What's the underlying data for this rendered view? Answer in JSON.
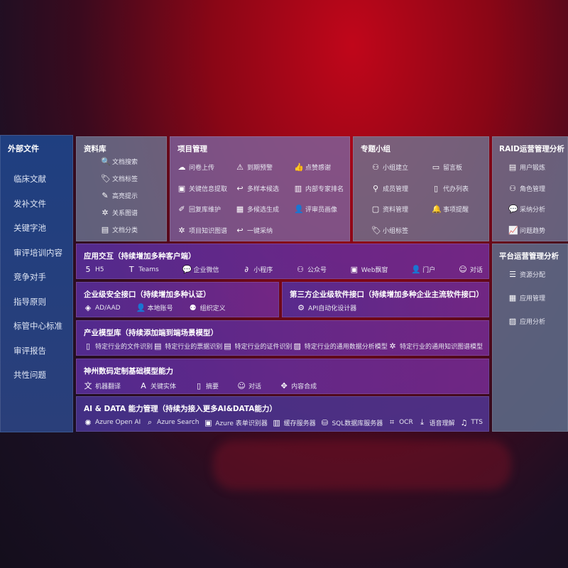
{
  "sidebar": {
    "title": "外部文件",
    "items": [
      "临床文献",
      "发补文件",
      "关键字池",
      "审评培训内容",
      "竞争对手",
      "指导原则",
      "标管中心标准",
      "审评报告",
      "共性问题"
    ]
  },
  "library": {
    "title": "资料库",
    "items": [
      {
        "icon": "doc-search-icon",
        "label": "文档搜索"
      },
      {
        "icon": "tag-icon",
        "label": "文档标签"
      },
      {
        "icon": "pen-icon",
        "label": "高亮提示"
      },
      {
        "icon": "graph-icon",
        "label": "关系图谱"
      },
      {
        "icon": "doc-category-icon",
        "label": "文档分类"
      }
    ]
  },
  "project": {
    "title": "项目管理",
    "items": [
      {
        "icon": "cloud-upload-icon",
        "label": "问卷上传"
      },
      {
        "icon": "alarm-icon",
        "label": "到期预警"
      },
      {
        "icon": "thumbs-up-icon",
        "label": "点赞感谢"
      },
      {
        "icon": "window-icon",
        "label": "关键信息提取"
      },
      {
        "icon": "reply-icon",
        "label": "多样本候选"
      },
      {
        "icon": "ranking-icon",
        "label": "内部专家排名"
      },
      {
        "icon": "edit-icon",
        "label": "回复库维护"
      },
      {
        "icon": "puzzle-icon",
        "label": "多候选生成"
      },
      {
        "icon": "user-icon",
        "label": "评审员画像"
      },
      {
        "icon": "graph-icon",
        "label": "项目知识图谱"
      },
      {
        "icon": "reply-icon",
        "label": "一键采纳"
      }
    ]
  },
  "group": {
    "title": "专题小组",
    "items": [
      {
        "icon": "users-icon",
        "label": "小组建立"
      },
      {
        "icon": "bbs-icon",
        "label": "留言板"
      },
      {
        "icon": "user-add-icon",
        "label": "成员管理"
      },
      {
        "icon": "clipboard-icon",
        "label": "代办列表"
      },
      {
        "icon": "folder-icon",
        "label": "资料管理"
      },
      {
        "icon": "bell-icon",
        "label": "事项提醒"
      },
      {
        "icon": "tag-icon",
        "label": "小组标签"
      }
    ]
  },
  "raid": {
    "title": "RAID运营管理分析",
    "items": [
      {
        "icon": "id-card-icon",
        "label": "用户锻炼"
      },
      {
        "icon": "users-icon",
        "label": "角色管理"
      },
      {
        "icon": "qa-icon",
        "label": "采纳分析"
      },
      {
        "icon": "trend-icon",
        "label": "问题趋势"
      }
    ]
  },
  "platform": {
    "title": "平台运营管理分析",
    "items": [
      {
        "icon": "checklist-icon",
        "label": "资源分配"
      },
      {
        "icon": "apps-icon",
        "label": "应用管理"
      },
      {
        "icon": "chart-icon",
        "label": "应用分析"
      }
    ]
  },
  "interaction": {
    "title": "应用交互（持续增加多种客户端）",
    "items": [
      {
        "icon": "html5-icon",
        "label": "H5"
      },
      {
        "icon": "teams-icon",
        "label": "Teams"
      },
      {
        "icon": "wechat-icon",
        "label": "企业微信"
      },
      {
        "icon": "miniprogram-icon",
        "label": "小程序"
      },
      {
        "icon": "users-icon",
        "label": "公众号"
      },
      {
        "icon": "window-icon",
        "label": "Web飘窗"
      },
      {
        "icon": "portal-icon",
        "label": "门户"
      },
      {
        "icon": "chat-icon",
        "label": "对话"
      }
    ]
  },
  "security": {
    "title": "企业级安全接口（持续增加多种认证）",
    "items": [
      {
        "icon": "ad-icon",
        "label": "AD/AAD"
      },
      {
        "icon": "account-icon",
        "label": "本地账号"
      },
      {
        "icon": "org-icon",
        "label": "组织定义"
      }
    ]
  },
  "third": {
    "title": "第三方企业级软件接口（持续增加多种企业主流软件接口）",
    "items": [
      {
        "icon": "gear-icon",
        "label": "API自动化设计器"
      }
    ]
  },
  "industry": {
    "title": "产业模型库（持续添加端到端场景模型）",
    "items": [
      {
        "icon": "file-icon",
        "label": "特定行业的文件识别"
      },
      {
        "icon": "receipt-icon",
        "label": "特定行业的票据识别"
      },
      {
        "icon": "id-card-icon",
        "label": "特定行业的证件识别"
      },
      {
        "icon": "image-icon",
        "label": "特定行业的通用数据分析模型"
      },
      {
        "icon": "graph-icon",
        "label": "特定行业的通用知识图谱模型"
      }
    ]
  },
  "base": {
    "title": "神州数码定制基础模型能力",
    "items": [
      {
        "icon": "translate-icon",
        "label": "机器翻译"
      },
      {
        "icon": "entity-icon",
        "label": "关键实体"
      },
      {
        "icon": "summary-icon",
        "label": "摘要"
      },
      {
        "icon": "chat-icon",
        "label": "对话"
      },
      {
        "icon": "compose-icon",
        "label": "内容合成"
      }
    ]
  },
  "aidata": {
    "title": "AI & DATA 能力管理（持续为接入更多AI&DATA能力）",
    "items": [
      {
        "icon": "openai-icon",
        "label": "Azure Open AI"
      },
      {
        "icon": "search-icon",
        "label": "Azure Search"
      },
      {
        "icon": "form-icon",
        "label": "Azure 表单识别器"
      },
      {
        "icon": "cache-icon",
        "label": "缓存服务器"
      },
      {
        "icon": "sql-icon",
        "label": "SQL数据库服务器"
      },
      {
        "icon": "ocr-icon",
        "label": "OCR"
      },
      {
        "icon": "speech-icon",
        "label": "语音理解"
      },
      {
        "icon": "tts-icon",
        "label": "TTS"
      }
    ]
  }
}
